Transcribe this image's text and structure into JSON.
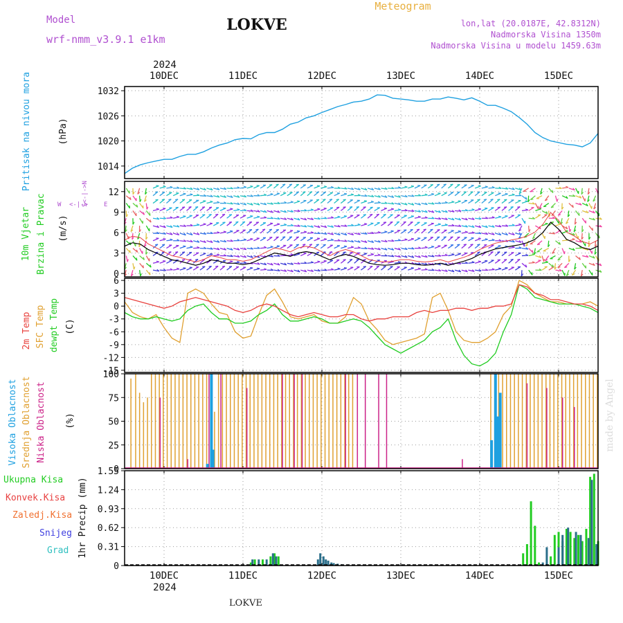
{
  "header": {
    "model_label": "Model",
    "model_name": "wrf-nmm_v3.9.1  e1km",
    "location": "LOKVE",
    "product": "Meteogram",
    "coords": "lon,lat (20.0187E, 42.8312N)",
    "altitude": "Nadmorska Visina 1350m",
    "model_altitude": "Nadmorska Visina u modelu 1459.63m"
  },
  "footer": {
    "location": "LOKVE",
    "watermark": "made by Angel"
  },
  "colors": {
    "pressure": "#1ea0e0",
    "temp2m": "#e8403c",
    "tsfc": "#e0a030",
    "dewpt": "#20cc20",
    "high_cloud": "#1ea0e0",
    "mid_cloud": "#e0a030",
    "low_cloud": "#cc2288",
    "total_precip": "#22cc22",
    "conv_precip": "#e84040",
    "frozen_precip": "#f07030",
    "snow": "#4040e0",
    "graupel": "#30c0c0",
    "purple_text": "#b050d0",
    "orange_text": "#e8b040"
  },
  "time_axis": {
    "day_labels": [
      "10DEC",
      "11DEC",
      "12DEC",
      "13DEC",
      "14DEC",
      "15DEC"
    ],
    "year": "2024",
    "start_day": 9.5,
    "end_day": 15.5
  },
  "chart_data": [
    {
      "type": "line",
      "panel": "pressure",
      "ylabel": "Pritisak na nivou mora",
      "unit": "(hPa)",
      "ylim": [
        1011,
        1033
      ],
      "yticks": [
        1014,
        1020,
        1026,
        1032
      ],
      "grid": true,
      "series": [
        {
          "x": [
            9.5,
            9.6,
            9.7,
            9.8,
            9.9,
            10.0,
            10.1,
            10.2,
            10.3,
            10.4,
            10.5,
            10.6,
            10.7,
            10.8,
            10.9,
            11.0,
            11.1,
            11.2,
            11.3,
            11.4,
            11.5,
            11.6,
            11.7,
            11.8,
            11.9,
            12.0,
            12.1,
            12.2,
            12.3,
            12.4,
            12.5,
            12.6,
            12.7,
            12.8,
            12.9,
            13.0,
            13.1,
            13.2,
            13.3,
            13.4,
            13.5,
            13.6,
            13.7,
            13.8,
            13.9,
            14.0,
            14.1,
            14.2,
            14.3,
            14.4,
            14.5,
            14.6,
            14.7,
            14.8,
            14.9,
            15.0,
            15.1,
            15.2,
            15.3,
            15.4,
            15.5
          ],
          "values": [
            1012.2,
            1013.5,
            1014.3,
            1014.8,
            1015.2,
            1015.6,
            1015.6,
            1016.3,
            1016.8,
            1016.8,
            1017.4,
            1018.3,
            1019.0,
            1019.5,
            1020.3,
            1020.6,
            1020.5,
            1021.5,
            1022.0,
            1022.0,
            1022.8,
            1024.0,
            1024.5,
            1025.5,
            1026.0,
            1026.8,
            1027.5,
            1028.2,
            1028.7,
            1029.3,
            1029.5,
            1030.0,
            1031.0,
            1030.9,
            1030.2,
            1030.0,
            1029.8,
            1029.5,
            1029.5,
            1030.0,
            1030.0,
            1030.5,
            1030.2,
            1029.8,
            1030.3,
            1029.5,
            1028.5,
            1028.5,
            1027.8,
            1027.0,
            1025.6,
            1024.0,
            1022.0,
            1020.8,
            1020.0,
            1019.6,
            1019.2,
            1019.0,
            1018.6,
            1019.5,
            1021.8
          ]
        }
      ]
    },
    {
      "type": "line",
      "panel": "wind",
      "ylabel": "10m Vjetar Brzina i Pravac",
      "unit": "(m/s)",
      "compass": {
        "north": "N",
        "south": "S",
        "west": "W",
        "east": "E"
      },
      "ylim": [
        -0.5,
        13.5
      ],
      "yticks": [
        0,
        3,
        6,
        9,
        12
      ],
      "grid": true,
      "arrow_rows": [
        0.5,
        1.5,
        2.6,
        3.7,
        4.8,
        5.9,
        7.0,
        8.1,
        9.2,
        10.3,
        11.4,
        12.5
      ],
      "series": [
        {
          "x": [
            9.5,
            9.6,
            9.7,
            9.8,
            9.9,
            10.0,
            10.1,
            10.2,
            10.3,
            10.4,
            10.5,
            10.6,
            10.7,
            10.8,
            10.9,
            11.0,
            11.1,
            11.2,
            11.3,
            11.4,
            11.5,
            11.6,
            11.7,
            11.8,
            11.9,
            12.0,
            12.1,
            12.2,
            12.3,
            12.4,
            12.5,
            12.6,
            12.7,
            12.8,
            12.9,
            13.0,
            13.1,
            13.2,
            13.3,
            13.4,
            13.5,
            13.6,
            13.7,
            13.8,
            13.9,
            14.0,
            14.1,
            14.2,
            14.3,
            14.4,
            14.5,
            14.6,
            14.7,
            14.8,
            14.9,
            15.0,
            15.1,
            15.2,
            15.3,
            15.4,
            15.5
          ],
          "values": [
            4.0,
            4.5,
            4.3,
            3.5,
            3.0,
            2.5,
            2.0,
            1.8,
            1.5,
            1.2,
            1.5,
            2.0,
            1.8,
            1.5,
            1.5,
            1.3,
            1.5,
            2.0,
            2.5,
            3.0,
            2.8,
            2.5,
            3.0,
            3.2,
            3.0,
            2.5,
            2.0,
            2.5,
            2.8,
            2.5,
            2.0,
            1.5,
            1.3,
            1.2,
            1.3,
            1.5,
            1.5,
            1.3,
            1.2,
            1.3,
            1.5,
            1.2,
            1.5,
            1.8,
            2.2,
            2.8,
            3.2,
            3.6,
            3.8,
            4.0,
            4.2,
            4.5,
            5.0,
            6.0,
            7.5,
            6.5,
            5.0,
            4.5,
            3.8,
            3.5,
            4.0
          ]
        }
      ]
    },
    {
      "type": "line",
      "panel": "temperature",
      "ylabel_lines": [
        "2m Temp",
        "SFC Temp",
        "dewpt Temp"
      ],
      "unit": "(C)",
      "ylim": [
        -15.5,
        6.5
      ],
      "yticks": [
        6,
        3,
        0,
        -3,
        -6,
        -9,
        -12,
        -15
      ],
      "grid": true,
      "x": [
        9.5,
        9.6,
        9.7,
        9.8,
        9.9,
        10.0,
        10.1,
        10.2,
        10.3,
        10.4,
        10.5,
        10.6,
        10.7,
        10.8,
        10.9,
        11.0,
        11.1,
        11.2,
        11.3,
        11.4,
        11.5,
        11.6,
        11.7,
        11.8,
        11.9,
        12.0,
        12.1,
        12.2,
        12.3,
        12.4,
        12.5,
        12.6,
        12.7,
        12.8,
        12.9,
        13.0,
        13.1,
        13.2,
        13.3,
        13.4,
        13.5,
        13.6,
        13.7,
        13.8,
        13.9,
        14.0,
        14.1,
        14.2,
        14.3,
        14.4,
        14.5,
        14.6,
        14.7,
        14.8,
        14.9,
        15.0,
        15.1,
        15.2,
        15.3,
        15.4,
        15.5
      ],
      "series": [
        {
          "name": "2m Temp",
          "values": [
            2.0,
            1.5,
            1.0,
            0.5,
            0.0,
            -0.5,
            0.0,
            1.0,
            1.5,
            2.0,
            1.5,
            1.0,
            0.5,
            0.0,
            -1.0,
            -1.5,
            -1.0,
            0.0,
            0.5,
            0.0,
            -1.0,
            -2.0,
            -2.5,
            -2.0,
            -1.5,
            -2.0,
            -2.5,
            -2.5,
            -2.0,
            -2.0,
            -3.0,
            -3.5,
            -3.0,
            -3.0,
            -2.5,
            -2.5,
            -2.5,
            -1.5,
            -1.0,
            -1.5,
            -1.0,
            -1.0,
            -0.5,
            -0.5,
            -1.0,
            -0.5,
            -0.5,
            0.0,
            0.0,
            0.5,
            5.0,
            4.5,
            3.0,
            2.5,
            1.5,
            1.5,
            1.0,
            0.5,
            0.5,
            0.0,
            -1.0
          ]
        },
        {
          "name": "SFC Temp",
          "values": [
            1.0,
            -1.5,
            -2.5,
            -3.0,
            -2.0,
            -5.0,
            -7.5,
            -8.5,
            3.0,
            4.0,
            3.0,
            0.5,
            -1.5,
            -2.0,
            -6.0,
            -7.5,
            -7.0,
            -2.0,
            2.5,
            4.0,
            1.0,
            -2.5,
            -3.0,
            -2.5,
            -2.0,
            -3.5,
            -4.0,
            -4.0,
            -2.5,
            2.0,
            0.5,
            -3.5,
            -5.5,
            -8.0,
            -9.0,
            -8.5,
            -8.0,
            -7.5,
            -6.5,
            2.0,
            3.0,
            -1.0,
            -6.0,
            -8.0,
            -8.5,
            -8.5,
            -7.5,
            -6.0,
            -2.0,
            0.0,
            6.0,
            5.0,
            3.0,
            2.0,
            1.0,
            1.0,
            0.5,
            0.5,
            0.5,
            1.0,
            0.0
          ]
        },
        {
          "name": "dewpt Temp",
          "values": [
            -1.5,
            -2.5,
            -3.0,
            -3.0,
            -2.5,
            -3.0,
            -3.5,
            -3.0,
            -1.0,
            0.0,
            0.5,
            -1.5,
            -3.0,
            -3.0,
            -4.0,
            -4.0,
            -3.5,
            -2.0,
            -1.0,
            0.5,
            -2.0,
            -3.5,
            -3.5,
            -3.0,
            -2.5,
            -3.0,
            -4.0,
            -4.0,
            -3.5,
            -3.0,
            -3.5,
            -5.0,
            -7.0,
            -9.0,
            -10.0,
            -11.0,
            -10.0,
            -9.0,
            -8.0,
            -6.0,
            -5.0,
            -3.0,
            -8.0,
            -11.5,
            -13.5,
            -14.0,
            -13.0,
            -11.0,
            -6.0,
            -2.0,
            5.0,
            4.0,
            2.0,
            1.5,
            1.0,
            0.5,
            0.5,
            0.5,
            0.0,
            -0.5,
            -1.5
          ]
        }
      ]
    },
    {
      "type": "bar",
      "panel": "cloud",
      "ylabel_lines": [
        "Visoka Oblacnost",
        "Srednja Oblacnost",
        "Niska Oblacnost"
      ],
      "unit": "(%)",
      "ylim": [
        0,
        100
      ],
      "yticks": [
        0,
        25,
        50,
        75,
        100
      ],
      "grid": true,
      "series": [
        {
          "name": "Visoka Oblacnost",
          "x": [
            10.55,
            10.6,
            10.62,
            14.15,
            14.2,
            14.23,
            14.26
          ],
          "values": [
            5,
            100,
            20,
            30,
            100,
            55,
            80
          ]
        },
        {
          "name": "Srednja Oblacnost",
          "x": [
            9.58,
            9.64,
            9.69,
            9.74,
            9.79,
            9.84,
            9.89,
            9.94,
            9.99,
            10.04,
            10.09,
            10.14,
            10.19,
            10.24,
            10.29,
            10.34,
            10.39,
            10.44,
            10.49,
            10.54,
            10.59,
            10.64,
            10.69,
            10.74,
            10.79,
            10.84,
            10.89,
            10.94,
            10.99,
            11.04,
            11.09,
            11.14,
            11.19,
            11.24,
            11.29,
            11.34,
            11.39,
            11.44,
            11.49,
            11.54,
            11.59,
            11.64,
            11.69,
            11.74,
            11.79,
            11.84,
            11.89,
            11.94,
            11.99,
            12.04,
            12.09,
            12.14,
            12.19,
            12.24,
            12.29,
            12.34,
            12.39,
            14.14,
            14.19,
            14.24,
            14.29,
            14.34,
            14.39,
            14.44,
            14.49,
            14.54,
            14.59,
            14.64,
            14.69,
            14.74,
            14.79,
            14.84,
            14.89,
            14.94,
            14.99,
            15.04,
            15.09,
            15.14,
            15.19,
            15.24,
            15.29,
            15.34,
            15.39,
            15.44,
            15.49
          ],
          "values": [
            95,
            100,
            80,
            70,
            75,
            100,
            100,
            100,
            100,
            100,
            100,
            100,
            100,
            100,
            100,
            100,
            100,
            100,
            100,
            100,
            95,
            60,
            100,
            100,
            100,
            100,
            100,
            100,
            100,
            100,
            100,
            100,
            100,
            100,
            100,
            100,
            100,
            100,
            100,
            100,
            100,
            100,
            100,
            100,
            100,
            100,
            100,
            100,
            100,
            100,
            100,
            100,
            100,
            100,
            100,
            100,
            100,
            100,
            100,
            100,
            100,
            100,
            100,
            100,
            100,
            100,
            100,
            100,
            100,
            100,
            100,
            100,
            100,
            100,
            100,
            100,
            100,
            100,
            100,
            100,
            100,
            100,
            100,
            100,
            100
          ]
        },
        {
          "name": "Niska Oblacnost",
          "x": [
            9.95,
            10.3,
            10.57,
            10.72,
            11.05,
            11.5,
            11.65,
            11.75,
            12.3,
            12.45,
            12.55,
            12.72,
            12.82,
            13.78,
            14.6,
            14.85,
            15.05,
            15.2
          ],
          "values": [
            75,
            10,
            100,
            100,
            85,
            100,
            100,
            100,
            100,
            100,
            100,
            100,
            100,
            10,
            90,
            85,
            75,
            65
          ]
        }
      ]
    },
    {
      "type": "bar",
      "panel": "precipitation",
      "ylabel": "1hr Precip (mm)",
      "legend": [
        "Ukupna  Kisa",
        "Konvek.Kisa",
        "Zaledj.Kisa",
        "Snijeg",
        "Grad"
      ],
      "ylim": [
        0,
        1.55
      ],
      "yticks": [
        0,
        0.31,
        0.62,
        0.93,
        1.24,
        1.55
      ],
      "ytick_labels": [
        "0",
        "0.31",
        "0.62",
        "0.93",
        "1.24",
        "1.55"
      ],
      "grid": true,
      "series": [
        {
          "name": "Ukupna  Kisa",
          "x": [
            11.1,
            11.15,
            11.25,
            11.35,
            11.4,
            11.45,
            14.55,
            14.6,
            14.65,
            14.7,
            14.75,
            14.9,
            14.95,
            15.0,
            15.05,
            15.1,
            15.15,
            15.2,
            15.25,
            15.3,
            15.35,
            15.4,
            15.45,
            15.5
          ],
          "values": [
            0.05,
            0.1,
            0.1,
            0.15,
            0.2,
            0.15,
            0.2,
            0.35,
            1.05,
            0.65,
            0.05,
            0.15,
            0.5,
            0.55,
            0.4,
            0.6,
            0.55,
            0.45,
            0.5,
            0.4,
            0.6,
            1.45,
            1.5,
            0.4
          ]
        },
        {
          "name": "Snijeg",
          "x": [
            11.12,
            11.2,
            11.3,
            11.38,
            11.42,
            11.95,
            11.98,
            12.02,
            12.05,
            12.08,
            12.12,
            12.15,
            12.2,
            12.25,
            14.8,
            14.85,
            15.0,
            15.05,
            15.12,
            15.22,
            15.28,
            15.38,
            15.42,
            15.48
          ],
          "values": [
            0.1,
            0.1,
            0.1,
            0.2,
            0.15,
            0.1,
            0.2,
            0.15,
            0.1,
            0.08,
            0.05,
            0.04,
            0.03,
            0.02,
            0.05,
            0.3,
            0.3,
            0.5,
            0.62,
            0.55,
            0.5,
            0.45,
            1.4,
            0.35
          ]
        }
      ]
    }
  ]
}
